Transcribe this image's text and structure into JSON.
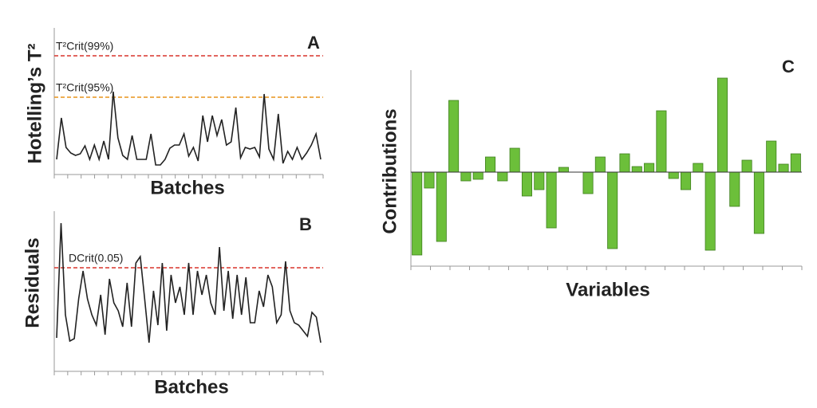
{
  "chart_data": [
    {
      "type": "line",
      "panel": "A",
      "ylabel": "Hotelling’s T²",
      "xlabel": "Batches",
      "color": "#222222",
      "ylim": [
        0,
        170
      ],
      "values": [
        15,
        67,
        30,
        23,
        20,
        22,
        32,
        15,
        33,
        15,
        38,
        15,
        100,
        42,
        20,
        15,
        45,
        15,
        15,
        15,
        47,
        8,
        8,
        15,
        29,
        33,
        33,
        47,
        19,
        30,
        13,
        70,
        37,
        70,
        45,
        65,
        33,
        37,
        80,
        17,
        30,
        28,
        30,
        18,
        97,
        28,
        15,
        72,
        10,
        25,
        15,
        30,
        15,
        23,
        33,
        47,
        15
      ],
      "reference_lines": [
        {
          "label": "T²Crit(99%)",
          "value": 145,
          "color": "#d9342b"
        },
        {
          "label": "T²Crit(95%)",
          "value": 93,
          "color": "#e8941a"
        }
      ]
    },
    {
      "type": "line",
      "panel": "B",
      "ylabel": "Residuals",
      "xlabel": "Batches",
      "color": "#222222",
      "ylim": [
        0,
        187
      ],
      "values": [
        38,
        182,
        67,
        34,
        37,
        87,
        122,
        87,
        67,
        54,
        92,
        42,
        112,
        82,
        72,
        52,
        107,
        52,
        132,
        140,
        87,
        32,
        97,
        54,
        132,
        47,
        117,
        82,
        102,
        67,
        132,
        67,
        122,
        92,
        117,
        82,
        67,
        152,
        72,
        122,
        62,
        117,
        67,
        114,
        57,
        57,
        97,
        77,
        117,
        102,
        57,
        67,
        134,
        72,
        57,
        54,
        47,
        40,
        70,
        64,
        32
      ],
      "reference_lines": [
        {
          "label": "DCrit(0.05)",
          "value": 126,
          "color": "#d9342b"
        }
      ]
    },
    {
      "type": "bar",
      "panel": "C",
      "ylabel": "Contributions",
      "xlabel": "Variables",
      "color": "#6cbf3a",
      "ylim": [
        -114,
        118
      ],
      "values": [
        -104,
        -20,
        -87,
        90,
        -11,
        -9,
        19,
        -11,
        30,
        -30,
        -22,
        -70,
        6,
        0,
        -27,
        19,
        -96,
        23,
        7,
        11,
        77,
        -8,
        -22,
        11,
        -98,
        118,
        -43,
        15,
        -77,
        39,
        10,
        23
      ]
    }
  ]
}
